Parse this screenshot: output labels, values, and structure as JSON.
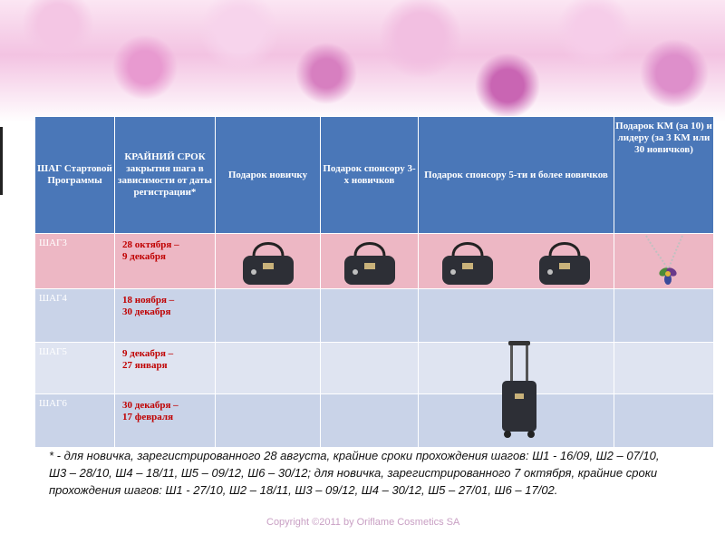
{
  "table": {
    "headers": [
      "ШАГ Стартовой Программы",
      "КРАЙНИЙ СРОК закрытия шага в зависимости от даты регистрации*",
      "Подарок новичку",
      "Подарок спонсору 3-х новичков",
      "Подарок спонсору 5-ти и более новичков",
      "Подарок КМ (за 10) и лидеру (за 3 КМ или 30 новичков)"
    ],
    "rows": [
      {
        "step": "ШАГ3",
        "deadline_line1": "28 октября –",
        "deadline_line2": "9 декабря"
      },
      {
        "step": "ШАГ4",
        "deadline_line1": "18 ноября –",
        "deadline_line2": "30 декабря"
      },
      {
        "step": "ШАГ5",
        "deadline_line1": "9 декабря –",
        "deadline_line2": "27 января"
      },
      {
        "step": "ШАГ6",
        "deadline_line1": "30 декабря –",
        "deadline_line2": "17 февраля"
      }
    ]
  },
  "footnote": "* - для новичка, зарегистрированного 28 августа, крайние сроки прохождения шагов: Ш1 - 16/09, Ш2 – 07/10, Ш3 – 28/10, Ш4 – 18/11, Ш5 – 09/12, Ш6 – 30/12; для новичка, зарегистрированного 7 октября, крайние сроки прохождения шагов: Ш1 - 27/10, Ш2 – 18/11, Ш3 – 09/12, Ш4 – 30/12, Ш5 – 27/01, Ш6 – 17/02.",
  "copyright": "Copyright ©2011 by Oriflame Cosmetics SA",
  "icons": {
    "gift_newbie_step3": "handbag-icon",
    "gift_sponsor3_step3": "handbag-icon",
    "gift_sponsor5_step3_a": "handbag-icon",
    "gift_sponsor5_step3_b": "handbag-icon",
    "gift_leader_step3": "flower-necklace-icon",
    "gift_sponsor5_step5_6": "trolley-suitcase-icon"
  },
  "colors": {
    "header_bg": "#4a77b8",
    "row_step3": "#edb7c4",
    "row_alt": "#c9d3e8",
    "row_light": "#dfe4f1",
    "deadline_text": "#c00000"
  }
}
